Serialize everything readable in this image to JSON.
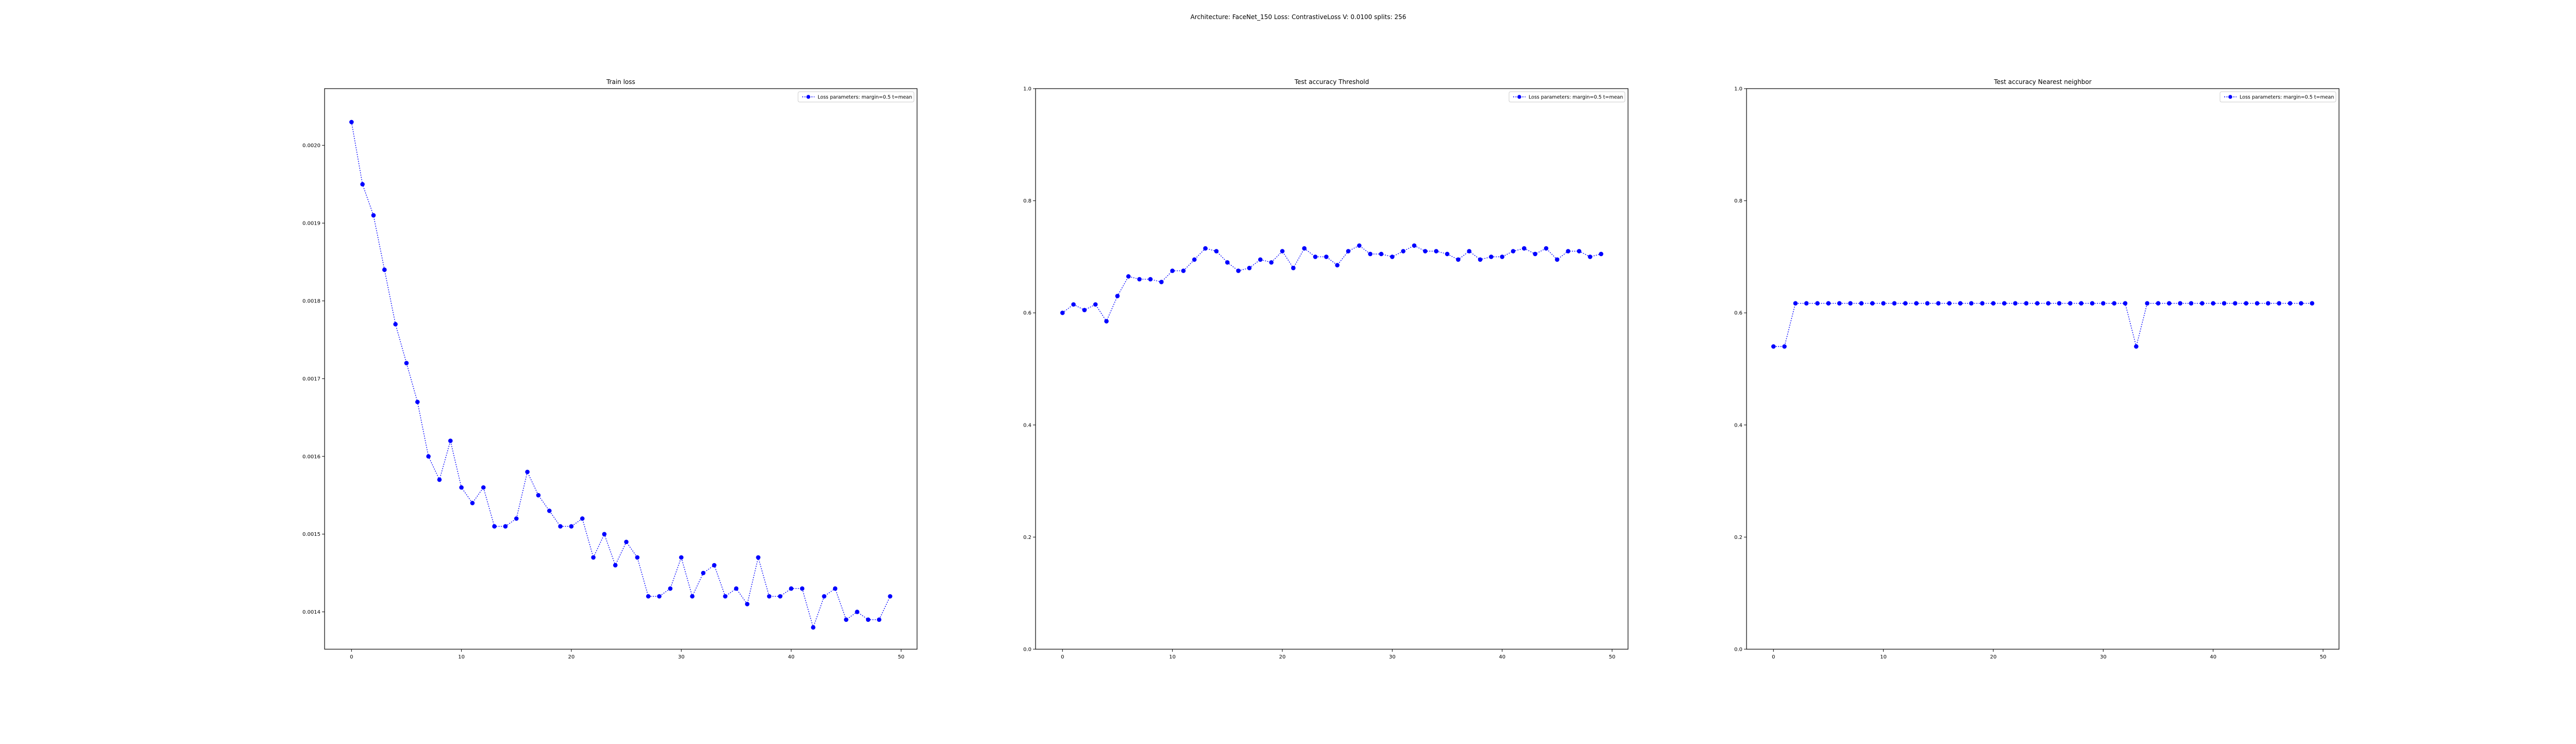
{
  "figure": {
    "suptitle": "Architecture: FaceNet_150 Loss: ContrastiveLoss V: 0.0100 splits: 256"
  },
  "colors": {
    "series": "#0000ff",
    "axis": "#000000"
  },
  "chart_data": [
    {
      "type": "line",
      "title": "Train loss",
      "xlabel": "",
      "ylabel": "",
      "xlim": [
        -2.45,
        51.45
      ],
      "ylim": [
        0.001352,
        0.002073
      ],
      "xticks": [
        0,
        10,
        20,
        30,
        40,
        50
      ],
      "xtick_labels": [
        "0",
        "10",
        "20",
        "30",
        "40",
        "50"
      ],
      "yticks": [
        0.0014,
        0.0015,
        0.0016,
        0.0017,
        0.0018,
        0.0019,
        0.002
      ],
      "ytick_labels": [
        "0.0014",
        "0.0015",
        "0.0016",
        "0.0017",
        "0.0018",
        "0.0019",
        "0.0020"
      ],
      "legend": {
        "placement": "top-right",
        "entries": [
          "Loss parameters: margin=0.5 t=mean"
        ]
      },
      "grid": false,
      "series": [
        {
          "name": "Loss parameters: margin=0.5 t=mean",
          "line_style": "dotted",
          "marker": "circle",
          "x": [
            0,
            1,
            2,
            3,
            4,
            5,
            6,
            7,
            8,
            9,
            10,
            11,
            12,
            13,
            14,
            15,
            16,
            17,
            18,
            19,
            20,
            21,
            22,
            23,
            24,
            25,
            26,
            27,
            28,
            29,
            30,
            31,
            32,
            33,
            34,
            35,
            36,
            37,
            38,
            39,
            40,
            41,
            42,
            43,
            44,
            45,
            46,
            47,
            48,
            49
          ],
          "y": [
            0.00203,
            0.00195,
            0.00191,
            0.00184,
            0.00177,
            0.00172,
            0.00167,
            0.0016,
            0.00157,
            0.00162,
            0.00156,
            0.00154,
            0.00156,
            0.00151,
            0.00151,
            0.00152,
            0.00158,
            0.00155,
            0.00153,
            0.00151,
            0.00151,
            0.00152,
            0.00147,
            0.0015,
            0.00146,
            0.00149,
            0.00147,
            0.00142,
            0.00142,
            0.00143,
            0.00147,
            0.00142,
            0.00145,
            0.00146,
            0.00142,
            0.00143,
            0.00141,
            0.00147,
            0.00142,
            0.00142,
            0.00143,
            0.00143,
            0.00138,
            0.00142,
            0.00143,
            0.00139,
            0.0014,
            0.00139,
            0.00139,
            0.00142
          ]
        }
      ]
    },
    {
      "type": "line",
      "title": "Test accuracy Threshold",
      "xlabel": "",
      "ylabel": "",
      "xlim": [
        -2.45,
        51.45
      ],
      "ylim": [
        0.0,
        1.0
      ],
      "xticks": [
        0,
        10,
        20,
        30,
        40,
        50
      ],
      "xtick_labels": [
        "0",
        "10",
        "20",
        "30",
        "40",
        "50"
      ],
      "yticks": [
        0.0,
        0.2,
        0.4,
        0.6,
        0.8,
        1.0
      ],
      "ytick_labels": [
        "0.0",
        "0.2",
        "0.4",
        "0.6",
        "0.8",
        "1.0"
      ],
      "legend": {
        "placement": "top-right",
        "entries": [
          "Loss parameters: margin=0.5 t=mean"
        ]
      },
      "grid": false,
      "series": [
        {
          "name": "Loss parameters: margin=0.5 t=mean",
          "line_style": "dotted",
          "marker": "circle",
          "x": [
            0,
            1,
            2,
            3,
            4,
            5,
            6,
            7,
            8,
            9,
            10,
            11,
            12,
            13,
            14,
            15,
            16,
            17,
            18,
            19,
            20,
            21,
            22,
            23,
            24,
            25,
            26,
            27,
            28,
            29,
            30,
            31,
            32,
            33,
            34,
            35,
            36,
            37,
            38,
            39,
            40,
            41,
            42,
            43,
            44,
            45,
            46,
            47,
            48,
            49
          ],
          "y": [
            0.6,
            0.615,
            0.605,
            0.615,
            0.585,
            0.63,
            0.665,
            0.66,
            0.66,
            0.655,
            0.675,
            0.675,
            0.695,
            0.715,
            0.71,
            0.69,
            0.675,
            0.68,
            0.695,
            0.69,
            0.71,
            0.68,
            0.715,
            0.7,
            0.7,
            0.685,
            0.71,
            0.72,
            0.705,
            0.705,
            0.7,
            0.71,
            0.72,
            0.71,
            0.71,
            0.705,
            0.695,
            0.71,
            0.695,
            0.7,
            0.7,
            0.71,
            0.715,
            0.705,
            0.715,
            0.695,
            0.71,
            0.71,
            0.7,
            0.705
          ]
        }
      ]
    },
    {
      "type": "line",
      "title": "Test accuracy Nearest neighbor",
      "xlabel": "",
      "ylabel": "",
      "xlim": [
        -2.45,
        51.45
      ],
      "ylim": [
        0.0,
        1.0
      ],
      "xticks": [
        0,
        10,
        20,
        30,
        40,
        50
      ],
      "xtick_labels": [
        "0",
        "10",
        "20",
        "30",
        "40",
        "50"
      ],
      "yticks": [
        0.0,
        0.2,
        0.4,
        0.6,
        0.8,
        1.0
      ],
      "ytick_labels": [
        "0.0",
        "0.2",
        "0.4",
        "0.6",
        "0.8",
        "1.0"
      ],
      "legend": {
        "placement": "top-right",
        "entries": [
          "Loss parameters: margin=0.5 t=mean"
        ]
      },
      "grid": false,
      "series": [
        {
          "name": "Loss parameters: margin=0.5 t=mean",
          "line_style": "dotted",
          "marker": "circle",
          "x": [
            0,
            1,
            2,
            3,
            4,
            5,
            6,
            7,
            8,
            9,
            10,
            11,
            12,
            13,
            14,
            15,
            16,
            17,
            18,
            19,
            20,
            21,
            22,
            23,
            24,
            25,
            26,
            27,
            28,
            29,
            30,
            31,
            32,
            33,
            34,
            35,
            36,
            37,
            38,
            39,
            40,
            41,
            42,
            43,
            44,
            45,
            46,
            47,
            48,
            49
          ],
          "y": [
            0.54,
            0.54,
            0.617,
            0.617,
            0.617,
            0.617,
            0.617,
            0.617,
            0.617,
            0.617,
            0.617,
            0.617,
            0.617,
            0.617,
            0.617,
            0.617,
            0.617,
            0.617,
            0.617,
            0.617,
            0.617,
            0.617,
            0.617,
            0.617,
            0.617,
            0.617,
            0.617,
            0.617,
            0.617,
            0.617,
            0.617,
            0.617,
            0.617,
            0.54,
            0.617,
            0.617,
            0.617,
            0.617,
            0.617,
            0.617,
            0.617,
            0.617,
            0.617,
            0.617,
            0.617,
            0.617,
            0.617,
            0.617,
            0.617,
            0.617
          ]
        }
      ]
    }
  ]
}
